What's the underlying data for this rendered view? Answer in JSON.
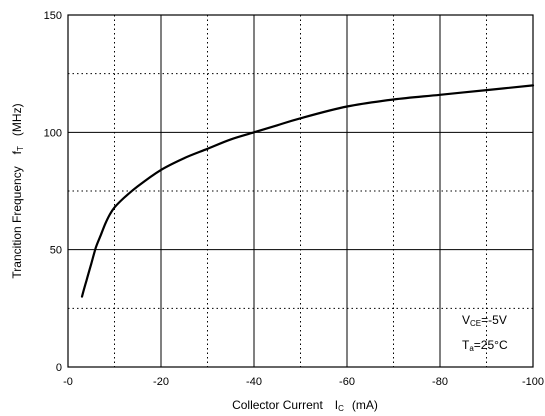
{
  "chart_data": {
    "type": "line",
    "x_reversed": true,
    "xlim": [
      0,
      -100
    ],
    "ylim": [
      0,
      150
    ],
    "grid": true,
    "x_major_ticks": [
      0,
      -20,
      -40,
      -60,
      -80,
      -100
    ],
    "x_tick_labels": [
      "-0",
      "-20",
      "-40",
      "-60",
      "-80",
      "-100"
    ],
    "x_minor_ticks": [
      -10,
      -30,
      -50,
      -70,
      -90
    ],
    "y_major_ticks": [
      0,
      50,
      100,
      150
    ],
    "y_tick_labels": [
      "0",
      "50",
      "100",
      "150"
    ],
    "y_minor_ticks": [
      25,
      75,
      125
    ],
    "xlabel": {
      "main": "Collector Current",
      "symbol": "I",
      "subscript": "C",
      "unit": "(mA)"
    },
    "ylabel": {
      "main": "Trancition Frequency",
      "symbol": "f",
      "subscript": "T",
      "unit": "(MHz)"
    },
    "annotations": [
      {
        "symbol": "V",
        "subscript": "CE",
        "value": "=-5V"
      },
      {
        "symbol": "T",
        "subscript": "a",
        "value": "=25°C"
      }
    ],
    "series": [
      {
        "x": [
          -3,
          -4,
          -5,
          -6,
          -7,
          -8,
          -9,
          -10,
          -12,
          -15,
          -20,
          -25,
          -30,
          -35,
          -40,
          -45,
          -50,
          -60,
          -70,
          -80,
          -90,
          -100
        ],
        "y": [
          30,
          37,
          44,
          51,
          56,
          61,
          65,
          68,
          72,
          77,
          84,
          89,
          93,
          97,
          100,
          103,
          106,
          111,
          114,
          116,
          118,
          120
        ]
      }
    ]
  }
}
